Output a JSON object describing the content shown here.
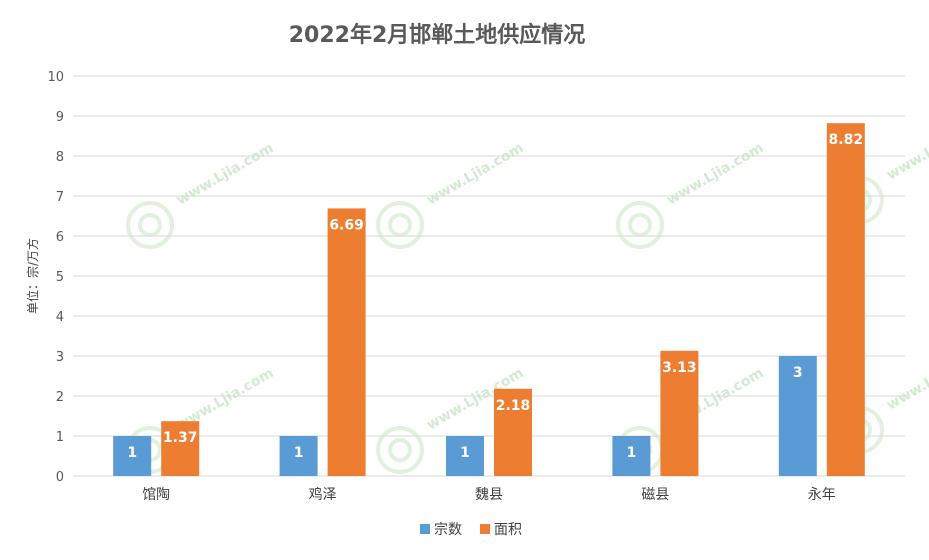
{
  "chart_data": {
    "type": "bar",
    "title": "2022年2月邯郸土地供应情况",
    "ylabel": "单位：宗/万方",
    "xlabel": "",
    "ylim": [
      0,
      10
    ],
    "yticks": [
      0,
      1,
      2,
      3,
      4,
      5,
      6,
      7,
      8,
      9,
      10
    ],
    "grid": true,
    "legend_position": "bottom",
    "categories": [
      "馆陶",
      "鸡泽",
      "魏县",
      "磁县",
      "永年"
    ],
    "series": [
      {
        "name": "宗数",
        "color": "#5b9bd5",
        "values": [
          1,
          1,
          1,
          1,
          3
        ],
        "labels": [
          "1",
          "1",
          "1",
          "1",
          "3"
        ]
      },
      {
        "name": "面积",
        "color": "#ed7d31",
        "values": [
          1.37,
          6.69,
          2.18,
          3.13,
          8.82
        ],
        "labels": [
          "1.37",
          "6.69",
          "2.18",
          "3.13",
          "8.82"
        ]
      }
    ]
  },
  "watermark": {
    "text": "www.Ljia.com",
    "icon": "snail-logo-icon"
  }
}
